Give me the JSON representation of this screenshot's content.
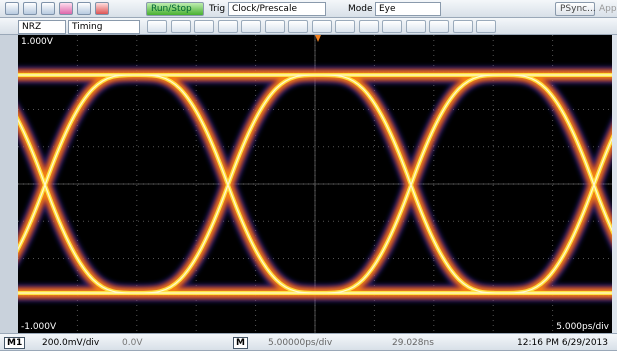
{
  "toolbar": {
    "run_stop": "Run/Stop",
    "trig_label": "Trig",
    "trig_source": "Clock/Prescale",
    "mode_label": "Mode",
    "mode": "Eye",
    "psync": "PSync...",
    "app": "App"
  },
  "toolbar2": {
    "signal": "NRZ",
    "measure": "Timing"
  },
  "display": {
    "top_label": "1.000V",
    "bottom_label": "-1.000V",
    "timebase_label": "5.000ps/div"
  },
  "status": {
    "channel": "M1",
    "scale": "200.0mV/div",
    "offset": "0.0V",
    "math": "M",
    "horizontal": "5.00000ps/div",
    "position": "29.028ns",
    "datetime": "12:16 PM 6/29/2013"
  }
}
